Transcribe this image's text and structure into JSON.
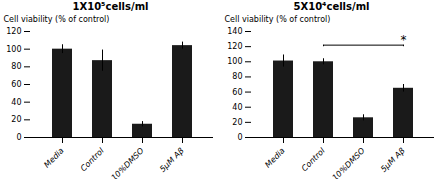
{
  "chart_data": [
    {
      "type": "bar",
      "title": "1X10⁵cells/ml",
      "categories": [
        "Media",
        "Control",
        "10%DMSO",
        "5μM Aβ"
      ],
      "values": [
        100,
        87,
        15,
        104
      ],
      "errors": [
        5,
        12,
        3,
        4
      ],
      "color": "#1a1a1a",
      "ylabel": "Cell viability (% of control)",
      "ylim": [
        0,
        120
      ],
      "yticks": [
        0,
        20,
        40,
        60,
        80,
        100,
        120
      ],
      "grid": false
    },
    {
      "type": "bar",
      "title": "5X10⁴cells/ml",
      "categories": [
        "Media",
        "Control",
        "10%DMSO",
        "5μM Aβ"
      ],
      "values": [
        101,
        100,
        26,
        65
      ],
      "errors": [
        8,
        4,
        4,
        5
      ],
      "color": "#1a1a1a",
      "ylabel": "Cell viability (% of control)",
      "ylim": [
        0,
        140
      ],
      "yticks": [
        0,
        20,
        40,
        60,
        80,
        100,
        120,
        140
      ],
      "grid": false,
      "annotations": [
        {
          "x1": "Control",
          "x2": "5μM Aβ",
          "y": 122,
          "text": "*"
        }
      ]
    }
  ]
}
